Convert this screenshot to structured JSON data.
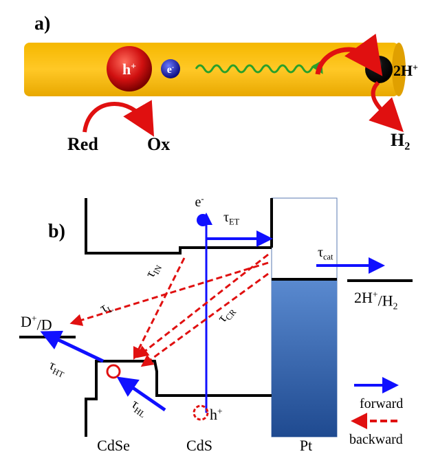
{
  "panel_a": {
    "label": "a)",
    "hole": [
      {
        "text": "h"
      },
      {
        "sup": "+"
      }
    ],
    "electron": [
      {
        "text": "e"
      },
      {
        "sup": "-"
      }
    ],
    "protons": [
      {
        "text": "2H"
      },
      {
        "sup": "+"
      }
    ],
    "reductant": [
      {
        "text": "Red"
      }
    ],
    "oxidant": [
      {
        "text": "Ox"
      }
    ],
    "hydrogen": [
      {
        "text": "H"
      },
      {
        "sub": "2"
      }
    ]
  },
  "panel_b": {
    "label": "b)",
    "electron": [
      {
        "text": "e"
      },
      {
        "sup": "-"
      }
    ],
    "tau_et": [
      {
        "text": "τ"
      },
      {
        "sub": "ET"
      }
    ],
    "tau_cat": [
      {
        "text": "τ"
      },
      {
        "sub": "cat"
      }
    ],
    "tau_in": [
      {
        "text": "τ"
      },
      {
        "sub": "IN"
      }
    ],
    "tau_l": [
      {
        "text": "τ"
      },
      {
        "sub": "L"
      }
    ],
    "tau_cr": [
      {
        "text": "τ"
      },
      {
        "sub": "CR"
      }
    ],
    "tau_ht": [
      {
        "text": "τ"
      },
      {
        "sub": "HT"
      }
    ],
    "tau_hl": [
      {
        "text": "τ"
      },
      {
        "sub": "HL"
      }
    ],
    "donor": [
      {
        "text": "D"
      },
      {
        "sup": "+"
      },
      {
        "text": "/D"
      }
    ],
    "proton_level": [
      {
        "text": "2H"
      },
      {
        "sup": "+"
      },
      {
        "text": "/H"
      },
      {
        "sub": "2"
      }
    ],
    "hole": [
      {
        "text": "h"
      },
      {
        "sup": "+"
      }
    ],
    "legend": {
      "forward": [
        {
          "text": "forward"
        }
      ],
      "backward": [
        {
          "text": "backward"
        }
      ]
    },
    "materials": [
      [
        {
          "text": "CdSe"
        }
      ],
      [
        {
          "text": "CdS"
        }
      ],
      [
        {
          "text": "Pt"
        }
      ]
    ]
  }
}
